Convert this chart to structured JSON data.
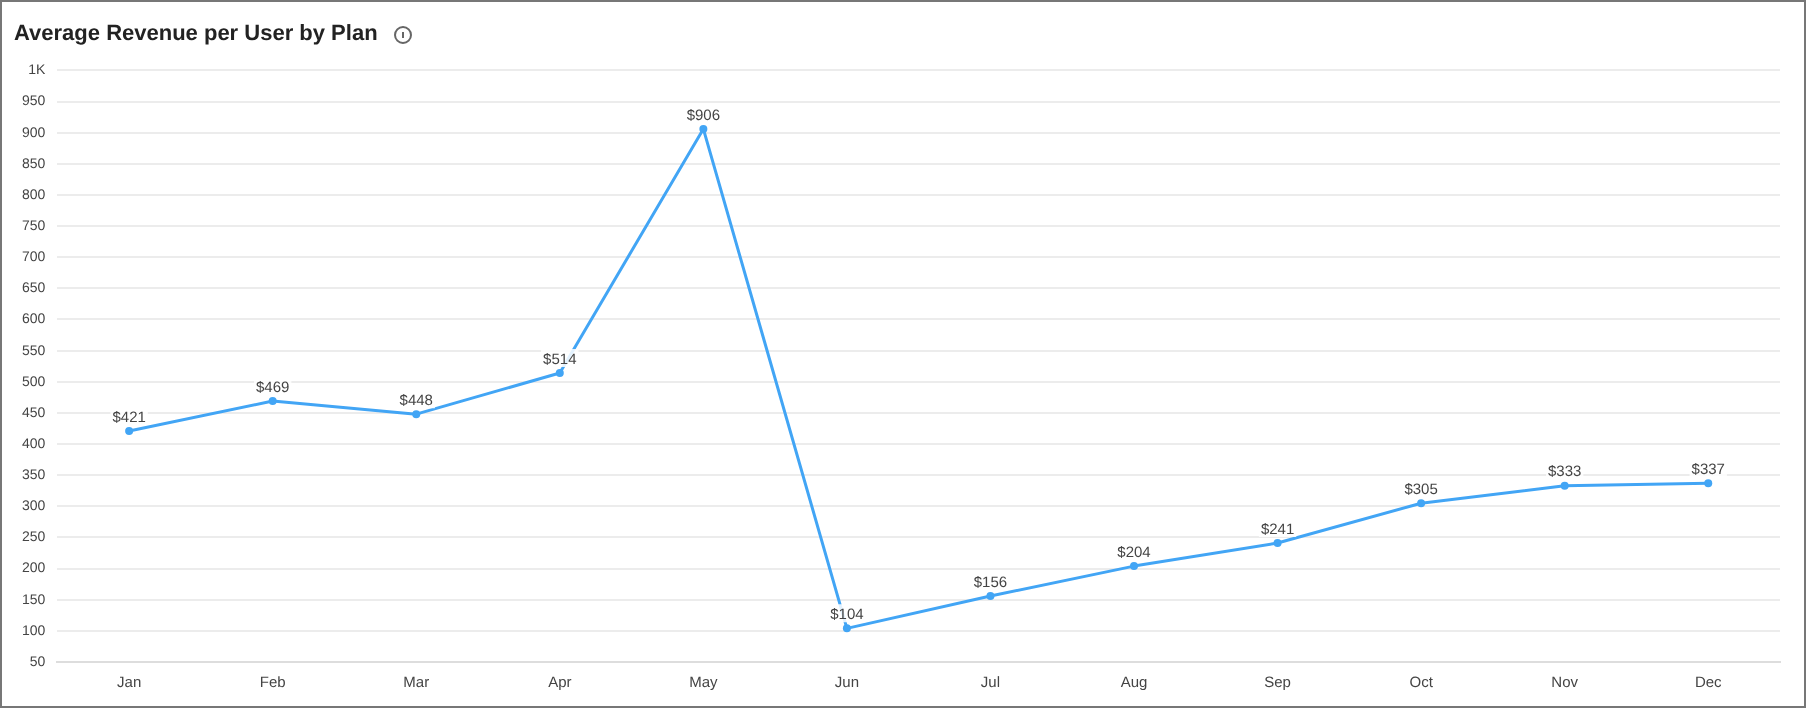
{
  "chart_data": {
    "type": "line",
    "title": "Average Revenue per User by Plan",
    "categories": [
      "Jan",
      "Feb",
      "Mar",
      "Apr",
      "May",
      "Jun",
      "Jul",
      "Aug",
      "Sep",
      "Oct",
      "Nov",
      "Dec"
    ],
    "series": [
      {
        "color": "#42a5f5",
        "values": [
          421,
          469,
          448,
          514,
          906,
          104,
          156,
          204,
          241,
          305,
          333,
          337
        ],
        "value_labels": [
          "$421",
          "$469",
          "$448",
          "$514",
          "$906",
          "$104",
          "$156",
          "$204",
          "$241",
          "$305",
          "$333",
          "$337"
        ]
      }
    ],
    "ylim": [
      50,
      1000
    ],
    "yticks": [
      50,
      100,
      150,
      200,
      250,
      300,
      350,
      400,
      450,
      500,
      550,
      600,
      650,
      700,
      750,
      800,
      850,
      900,
      950,
      {
        "value": 1000,
        "label": "1K"
      }
    ],
    "grid": "y",
    "legend": false,
    "marker": "circle",
    "line_style": "solid"
  }
}
